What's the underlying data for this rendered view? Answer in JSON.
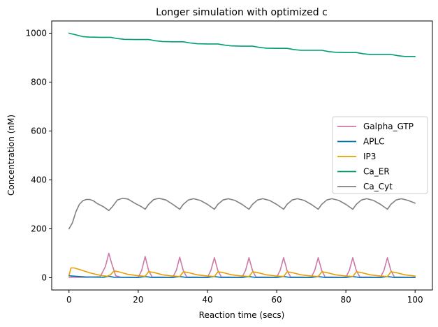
{
  "chart_data": {
    "type": "line",
    "title": "Longer simulation with optimized c",
    "xlabel": "Reaction time (secs)",
    "ylabel": "Concentration (nM)",
    "xlim": [
      -5,
      105
    ],
    "ylim": [
      -50,
      1050
    ],
    "xticks": [
      0,
      20,
      40,
      60,
      80,
      100
    ],
    "yticks": [
      0,
      200,
      400,
      600,
      800,
      1000
    ],
    "xtick_labels": [
      "0",
      "20",
      "40",
      "60",
      "80",
      "100"
    ],
    "ytick_labels": [
      "0",
      "200",
      "400",
      "600",
      "800",
      "1000"
    ],
    "grid": false,
    "legend_position": "center-right",
    "series": [
      {
        "name": "Galpha_GTP",
        "color": "#cc79a7",
        "points": [
          [
            0,
            2
          ],
          [
            5,
            2
          ],
          [
            9,
            4
          ],
          [
            10.5,
            45
          ],
          [
            11.5,
            100
          ],
          [
            12.3,
            60
          ],
          [
            13.5,
            8
          ],
          [
            15,
            2
          ],
          [
            20,
            2
          ],
          [
            21,
            30
          ],
          [
            22,
            87
          ],
          [
            23,
            30
          ],
          [
            24,
            3
          ],
          [
            30,
            2
          ],
          [
            31,
            30
          ],
          [
            32,
            84
          ],
          [
            33,
            30
          ],
          [
            34,
            3
          ],
          [
            40,
            2
          ],
          [
            41,
            30
          ],
          [
            42,
            82
          ],
          [
            43,
            30
          ],
          [
            44,
            3
          ],
          [
            50,
            2
          ],
          [
            51,
            30
          ],
          [
            52,
            82
          ],
          [
            53,
            30
          ],
          [
            54,
            3
          ],
          [
            60,
            2
          ],
          [
            61,
            30
          ],
          [
            62,
            82
          ],
          [
            63,
            30
          ],
          [
            64,
            3
          ],
          [
            70,
            2
          ],
          [
            71,
            30
          ],
          [
            72,
            82
          ],
          [
            73,
            30
          ],
          [
            74,
            3
          ],
          [
            80,
            2
          ],
          [
            81,
            30
          ],
          [
            82,
            82
          ],
          [
            83,
            30
          ],
          [
            84,
            3
          ],
          [
            90,
            2
          ],
          [
            91,
            30
          ],
          [
            92,
            82
          ],
          [
            93,
            30
          ],
          [
            94,
            3
          ],
          [
            100,
            2
          ]
        ]
      },
      {
        "name": "APLC",
        "color": "#0072b2",
        "points": [
          [
            0,
            8
          ],
          [
            2,
            6
          ],
          [
            5,
            3
          ],
          [
            10,
            2
          ],
          [
            11.5,
            6
          ],
          [
            13,
            2
          ],
          [
            20,
            1
          ],
          [
            22,
            5
          ],
          [
            24,
            1
          ],
          [
            30,
            1
          ],
          [
            32,
            5
          ],
          [
            34,
            1
          ],
          [
            40,
            1
          ],
          [
            42,
            5
          ],
          [
            44,
            1
          ],
          [
            50,
            1
          ],
          [
            52,
            5
          ],
          [
            54,
            1
          ],
          [
            60,
            1
          ],
          [
            62,
            5
          ],
          [
            64,
            1
          ],
          [
            70,
            1
          ],
          [
            72,
            5
          ],
          [
            74,
            1
          ],
          [
            80,
            1
          ],
          [
            82,
            5
          ],
          [
            84,
            1
          ],
          [
            90,
            1
          ],
          [
            92,
            5
          ],
          [
            94,
            1
          ],
          [
            100,
            1
          ]
        ]
      },
      {
        "name": "IP3",
        "color": "#e69f00",
        "points": [
          [
            0,
            10
          ],
          [
            0.6,
            40
          ],
          [
            1.5,
            40
          ],
          [
            3,
            34
          ],
          [
            6,
            20
          ],
          [
            9,
            10
          ],
          [
            11,
            6
          ],
          [
            12,
            12
          ],
          [
            13,
            28
          ],
          [
            14.5,
            24
          ],
          [
            17,
            14
          ],
          [
            20,
            8
          ],
          [
            22,
            6
          ],
          [
            23,
            25
          ],
          [
            24.5,
            22
          ],
          [
            27,
            12
          ],
          [
            30,
            7
          ],
          [
            32,
            5
          ],
          [
            33,
            24
          ],
          [
            34.5,
            21
          ],
          [
            37,
            12
          ],
          [
            40,
            7
          ],
          [
            42,
            5
          ],
          [
            43,
            24
          ],
          [
            44.5,
            21
          ],
          [
            47,
            12
          ],
          [
            50,
            7
          ],
          [
            52,
            5
          ],
          [
            53,
            24
          ],
          [
            54.5,
            21
          ],
          [
            57,
            12
          ],
          [
            60,
            7
          ],
          [
            62,
            5
          ],
          [
            63,
            24
          ],
          [
            64.5,
            21
          ],
          [
            67,
            12
          ],
          [
            70,
            7
          ],
          [
            72,
            5
          ],
          [
            73,
            24
          ],
          [
            74.5,
            21
          ],
          [
            77,
            12
          ],
          [
            80,
            7
          ],
          [
            82,
            5
          ],
          [
            83,
            24
          ],
          [
            84.5,
            21
          ],
          [
            87,
            12
          ],
          [
            90,
            7
          ],
          [
            92,
            5
          ],
          [
            93,
            24
          ],
          [
            94.5,
            21
          ],
          [
            97,
            12
          ],
          [
            100,
            7
          ]
        ]
      },
      {
        "name": "Ca_ER",
        "color": "#009e73",
        "points": [
          [
            0,
            1000
          ],
          [
            2,
            993
          ],
          [
            4,
            986
          ],
          [
            6,
            984
          ],
          [
            9,
            983
          ],
          [
            12,
            983
          ],
          [
            14,
            978
          ],
          [
            16,
            975
          ],
          [
            19,
            974
          ],
          [
            23,
            974
          ],
          [
            25,
            969
          ],
          [
            27,
            966
          ],
          [
            30,
            965
          ],
          [
            33,
            965
          ],
          [
            35,
            960
          ],
          [
            37,
            957
          ],
          [
            40,
            956
          ],
          [
            43,
            956
          ],
          [
            45,
            951
          ],
          [
            47,
            948
          ],
          [
            50,
            947
          ],
          [
            53,
            947
          ],
          [
            55,
            942
          ],
          [
            57,
            939
          ],
          [
            60,
            938
          ],
          [
            63,
            938
          ],
          [
            65,
            933
          ],
          [
            67,
            930
          ],
          [
            70,
            930
          ],
          [
            73,
            930
          ],
          [
            75,
            925
          ],
          [
            77,
            922
          ],
          [
            80,
            921
          ],
          [
            83,
            921
          ],
          [
            85,
            916
          ],
          [
            87,
            913
          ],
          [
            90,
            913
          ],
          [
            93,
            913
          ],
          [
            95,
            908
          ],
          [
            97,
            905
          ],
          [
            100,
            905
          ]
        ]
      },
      {
        "name": "Ca_Cyt",
        "color": "#808080",
        "points": [
          [
            0,
            200
          ],
          [
            1,
            225
          ],
          [
            2,
            270
          ],
          [
            3,
            300
          ],
          [
            4,
            315
          ],
          [
            5,
            320
          ],
          [
            6,
            320
          ],
          [
            7,
            315
          ],
          [
            8,
            305
          ],
          [
            10,
            290
          ],
          [
            11.5,
            275
          ],
          [
            12.5,
            290
          ],
          [
            14,
            318
          ],
          [
            15.5,
            325
          ],
          [
            17,
            322
          ],
          [
            19,
            305
          ],
          [
            21,
            290
          ],
          [
            22,
            280
          ],
          [
            23,
            300
          ],
          [
            24.5,
            320
          ],
          [
            26,
            325
          ],
          [
            28,
            318
          ],
          [
            30,
            300
          ],
          [
            32,
            280
          ],
          [
            33,
            300
          ],
          [
            34.5,
            318
          ],
          [
            36,
            323
          ],
          [
            38,
            316
          ],
          [
            40,
            300
          ],
          [
            42,
            280
          ],
          [
            43,
            300
          ],
          [
            44.5,
            318
          ],
          [
            46,
            323
          ],
          [
            48,
            316
          ],
          [
            50,
            300
          ],
          [
            52,
            280
          ],
          [
            53,
            300
          ],
          [
            54.5,
            318
          ],
          [
            56,
            323
          ],
          [
            58,
            316
          ],
          [
            60,
            300
          ],
          [
            62,
            280
          ],
          [
            63,
            300
          ],
          [
            64.5,
            318
          ],
          [
            66,
            323
          ],
          [
            68,
            316
          ],
          [
            70,
            300
          ],
          [
            72,
            280
          ],
          [
            73,
            300
          ],
          [
            74.5,
            318
          ],
          [
            76,
            323
          ],
          [
            78,
            316
          ],
          [
            80,
            300
          ],
          [
            82,
            280
          ],
          [
            83,
            300
          ],
          [
            84.5,
            318
          ],
          [
            86,
            323
          ],
          [
            88,
            316
          ],
          [
            90,
            300
          ],
          [
            92,
            280
          ],
          [
            93,
            300
          ],
          [
            94.5,
            318
          ],
          [
            96,
            323
          ],
          [
            98,
            316
          ],
          [
            100,
            305
          ]
        ]
      }
    ]
  }
}
